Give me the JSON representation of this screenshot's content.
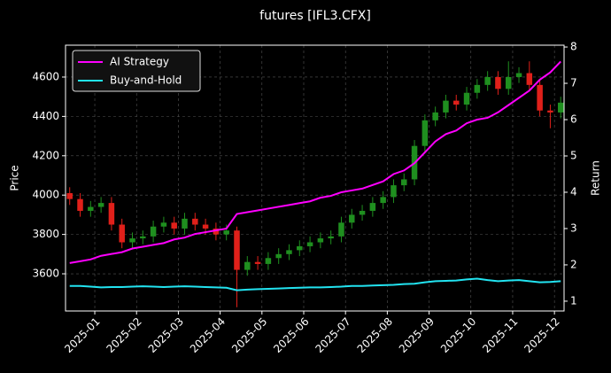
{
  "chart_data": {
    "type": "candlestick",
    "title": "futures [IFL3.CFX]",
    "y_label": "Price",
    "y2_label": "Return",
    "xlim": [
      -0.7,
      11.23
    ],
    "xticks": [
      {
        "value": 0,
        "label": "2025-01"
      },
      {
        "value": 1,
        "label": "2025-02"
      },
      {
        "value": 2,
        "label": "2025-03"
      },
      {
        "value": 3,
        "label": "2025-04"
      },
      {
        "value": 4,
        "label": "2025-05"
      },
      {
        "value": 5,
        "label": "2025-06"
      },
      {
        "value": 6,
        "label": "2025-07"
      },
      {
        "value": 7,
        "label": "2025-08"
      },
      {
        "value": 8,
        "label": "2025-09"
      },
      {
        "value": 9,
        "label": "2025-10"
      },
      {
        "value": 10,
        "label": "2025-11"
      },
      {
        "value": 11,
        "label": "2025-12"
      }
    ],
    "ylim": [
      3411,
      4762
    ],
    "yticks": [
      3600,
      3800,
      4000,
      4200,
      4400,
      4600
    ],
    "y2lim": [
      0.73,
      8.05
    ],
    "y2ticks": [
      1,
      2,
      3,
      4,
      5,
      6,
      7,
      8
    ],
    "grid": true,
    "legend": "upper left",
    "up_color": "#1f8f1f",
    "down_color": "#e0201a",
    "x": [
      -0.6,
      -0.35,
      -0.1,
      0.15,
      0.4,
      0.65,
      0.9,
      1.15,
      1.4,
      1.65,
      1.9,
      2.15,
      2.4,
      2.65,
      2.9,
      3.15,
      3.4,
      3.65,
      3.9,
      4.15,
      4.4,
      4.65,
      4.9,
      5.15,
      5.4,
      5.65,
      5.9,
      6.15,
      6.4,
      6.65,
      6.9,
      7.15,
      7.4,
      7.65,
      7.9,
      8.15,
      8.4,
      8.65,
      8.9,
      9.15,
      9.4,
      9.65,
      9.9,
      10.15,
      10.4,
      10.65,
      10.9,
      11.15
    ],
    "open": [
      4010,
      3980,
      3920,
      3940,
      3960,
      3850,
      3760,
      3780,
      3790,
      3840,
      3860,
      3830,
      3880,
      3850,
      3830,
      3800,
      3820,
      3620,
      3660,
      3650,
      3680,
      3700,
      3720,
      3740,
      3760,
      3780,
      3790,
      3860,
      3900,
      3920,
      3960,
      3990,
      4050,
      4080,
      4250,
      4380,
      4420,
      4480,
      4460,
      4520,
      4560,
      4600,
      4540,
      4600,
      4620,
      4560,
      4430,
      4420
    ],
    "high": [
      4040,
      4010,
      3970,
      3990,
      3990,
      3880,
      3810,
      3820,
      3870,
      3890,
      3890,
      3910,
      3910,
      3880,
      3860,
      3850,
      3840,
      3690,
      3690,
      3710,
      3730,
      3750,
      3770,
      3790,
      3810,
      3820,
      3890,
      3930,
      3950,
      3990,
      4020,
      4080,
      4110,
      4280,
      4410,
      4450,
      4510,
      4510,
      4550,
      4590,
      4630,
      4630,
      4680,
      4650,
      4680,
      4590,
      4460,
      4500
    ],
    "low": [
      3950,
      3890,
      3890,
      3910,
      3820,
      3730,
      3730,
      3750,
      3760,
      3810,
      3800,
      3800,
      3820,
      3800,
      3770,
      3770,
      3430,
      3590,
      3620,
      3620,
      3650,
      3670,
      3690,
      3710,
      3730,
      3750,
      3760,
      3830,
      3870,
      3890,
      3930,
      3960,
      4020,
      4050,
      4220,
      4350,
      4390,
      4430,
      4430,
      4490,
      4530,
      4510,
      4510,
      4570,
      4530,
      4400,
      4340,
      4390
    ],
    "close": [
      3980,
      3920,
      3940,
      3960,
      3850,
      3760,
      3780,
      3790,
      3840,
      3860,
      3830,
      3880,
      3850,
      3830,
      3800,
      3820,
      3620,
      3660,
      3650,
      3680,
      3700,
      3720,
      3740,
      3760,
      3780,
      3790,
      3860,
      3900,
      3920,
      3960,
      3990,
      4050,
      4080,
      4250,
      4380,
      4420,
      4480,
      4460,
      4520,
      4560,
      4600,
      4540,
      4600,
      4620,
      4560,
      4430,
      4420,
      4470
    ],
    "series": [
      {
        "name": "AI Strategy",
        "color": "#ff00ff",
        "axis": "y2",
        "values": [
          2.05,
          2.1,
          2.15,
          2.25,
          2.3,
          2.35,
          2.45,
          2.5,
          2.55,
          2.6,
          2.7,
          2.75,
          2.85,
          2.9,
          2.95,
          3.0,
          3.4,
          3.45,
          3.5,
          3.55,
          3.6,
          3.65,
          3.7,
          3.75,
          3.85,
          3.9,
          4.0,
          4.05,
          4.1,
          4.2,
          4.3,
          4.5,
          4.6,
          4.8,
          5.1,
          5.4,
          5.6,
          5.7,
          5.9,
          6.0,
          6.05,
          6.2,
          6.4,
          6.6,
          6.8,
          7.1,
          7.3,
          7.6
        ]
      },
      {
        "name": "Buy-and-Hold",
        "color": "#22e3f0",
        "axis": "y2",
        "values": [
          1.42,
          1.42,
          1.4,
          1.38,
          1.39,
          1.39,
          1.4,
          1.41,
          1.4,
          1.39,
          1.4,
          1.41,
          1.4,
          1.39,
          1.38,
          1.37,
          1.3,
          1.32,
          1.33,
          1.34,
          1.35,
          1.36,
          1.37,
          1.38,
          1.38,
          1.39,
          1.4,
          1.42,
          1.42,
          1.43,
          1.44,
          1.45,
          1.47,
          1.48,
          1.52,
          1.55,
          1.56,
          1.57,
          1.6,
          1.62,
          1.58,
          1.55,
          1.57,
          1.58,
          1.55,
          1.52,
          1.53,
          1.55
        ]
      }
    ]
  }
}
